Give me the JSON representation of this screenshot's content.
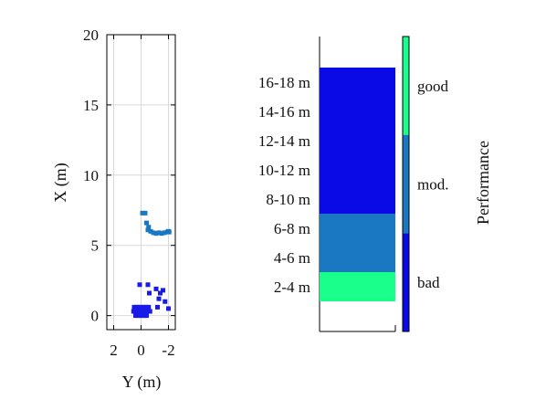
{
  "chart_data": [
    {
      "type": "scatter",
      "xlabel": "Y (m)",
      "ylabel": "X (m)",
      "xlim": [
        2.5,
        -2.5
      ],
      "ylim": [
        -1,
        20
      ],
      "x_reversed": true,
      "xticks": [
        "2",
        "0",
        "-2"
      ],
      "yticks": [
        "0",
        "5",
        "10",
        "15",
        "20"
      ],
      "grid": true,
      "series": [
        {
          "color": "#1a1ae6",
          "points": [
            [
              0.55,
              0.3
            ],
            [
              0.45,
              0.3
            ],
            [
              0.35,
              0.3
            ],
            [
              0.25,
              0.3
            ],
            [
              0.15,
              0.3
            ],
            [
              0.05,
              0.3
            ],
            [
              -0.05,
              0.3
            ],
            [
              -0.15,
              0.3
            ],
            [
              -0.25,
              0.3
            ],
            [
              -0.35,
              0.3
            ],
            [
              -0.45,
              0.3
            ],
            [
              -0.55,
              0.3
            ],
            [
              -0.65,
              0.3
            ],
            [
              0.5,
              0.6
            ],
            [
              0.35,
              0.6
            ],
            [
              0.2,
              0.6
            ],
            [
              0.05,
              0.6
            ],
            [
              -0.1,
              0.6
            ],
            [
              -0.25,
              0.6
            ],
            [
              -0.4,
              0.6
            ],
            [
              -0.55,
              0.6
            ],
            [
              0.4,
              0.0
            ],
            [
              0.2,
              0.0
            ],
            [
              0.0,
              0.0
            ],
            [
              -0.2,
              0.0
            ],
            [
              -0.4,
              0.0
            ],
            [
              0.1,
              2.2
            ],
            [
              -0.5,
              2.2
            ],
            [
              -0.6,
              1.6
            ],
            [
              -1.1,
              1.9
            ],
            [
              -1.4,
              1.6
            ],
            [
              -1.6,
              1.8
            ],
            [
              -1.3,
              1.2
            ],
            [
              -1.75,
              1.0
            ],
            [
              -2.0,
              0.5
            ],
            [
              -1.2,
              0.6
            ]
          ]
        },
        {
          "color": "#1a78c2",
          "points": [
            [
              -0.1,
              7.3
            ],
            [
              -0.3,
              7.3
            ],
            [
              -0.4,
              6.6
            ],
            [
              -0.5,
              6.1
            ],
            [
              -0.55,
              6.3
            ],
            [
              -0.7,
              6.0
            ],
            [
              -0.9,
              5.9
            ],
            [
              -1.1,
              5.85
            ],
            [
              -1.3,
              5.9
            ],
            [
              -1.5,
              5.85
            ],
            [
              -1.7,
              5.9
            ],
            [
              -1.9,
              5.95
            ],
            [
              -2.0,
              6.0
            ],
            [
              -2.05,
              5.95
            ]
          ]
        }
      ]
    },
    {
      "type": "bar",
      "orientation": "stacked-vertical",
      "categories": [
        "2-4 m",
        "4-6 m",
        "6-8 m",
        "8-10 m",
        "10-12 m",
        "12-14 m",
        "14-16 m",
        "16-18 m"
      ],
      "segments": [
        {
          "from": 2,
          "to": 4,
          "level": "good",
          "color": "#1aff8c"
        },
        {
          "from": 4,
          "to": 8,
          "level": "mod.",
          "color": "#1a78c2"
        },
        {
          "from": 8,
          "to": 18,
          "level": "bad",
          "color": "#0a0ae6"
        }
      ],
      "ylim": [
        1,
        19
      ],
      "colorbar": {
        "label": "Performance",
        "levels": [
          "bad",
          "mod.",
          "good"
        ],
        "colors": [
          "#0a0ae6",
          "#1a78c2",
          "#1aff8c"
        ]
      }
    }
  ]
}
